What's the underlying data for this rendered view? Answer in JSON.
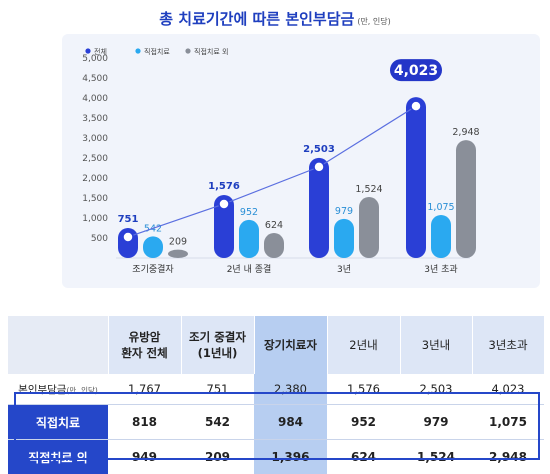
{
  "title": "총 치료기간에 따른 본인부담금",
  "title_unit": "(만, 인당)",
  "chart_data": {
    "type": "bar",
    "categories": [
      "조기중결자",
      "2년 내 종결",
      "3년",
      "3년 초과"
    ],
    "series": [
      {
        "name": "전체",
        "values": [
          751,
          1576,
          2503,
          4023
        ],
        "color": "#2a3fd6"
      },
      {
        "name": "직접치료",
        "values": [
          542,
          952,
          979,
          1075
        ],
        "color": "#2aa9f0"
      },
      {
        "name": "직접치료 외",
        "values": [
          209,
          624,
          1524,
          2948
        ],
        "color": "#8a8f99"
      }
    ],
    "value_labels": [
      [
        "751",
        "542",
        "209"
      ],
      [
        "1,576",
        "952",
        "624"
      ],
      [
        "2,503",
        "979",
        "1,524"
      ],
      [
        "4,023",
        "1,075",
        "2,948"
      ]
    ],
    "yticks": [
      "500",
      "1,000",
      "1,500",
      "2,000",
      "2,500",
      "3,000",
      "3,500",
      "4,000",
      "4,500",
      "5,000"
    ],
    "ytick_values": [
      500,
      1000,
      1500,
      2000,
      2500,
      3000,
      3500,
      4000,
      4500,
      5000
    ],
    "ylim": [
      0,
      5000
    ],
    "legend": "top-left",
    "trend_line": "전체"
  },
  "table": {
    "headers": [
      "유방암\n환자 전체",
      "조기 중결자\n(1년내)",
      "장기치료자",
      "2년내",
      "3년내",
      "3년초과"
    ],
    "rows": [
      {
        "label": "본인부담금",
        "label_unit": "(만, 인당)",
        "values": [
          "1,767",
          "751",
          "2,380",
          "1,576",
          "2,503",
          "4,023"
        ]
      },
      {
        "label": "직접치료",
        "label_unit": "",
        "values": [
          "818",
          "542",
          "984",
          "952",
          "979",
          "1,075"
        ]
      },
      {
        "label": "직접치료 외",
        "label_unit": "",
        "values": [
          "949",
          "209",
          "1,396",
          "624",
          "1,524",
          "2,948"
        ]
      }
    ]
  }
}
